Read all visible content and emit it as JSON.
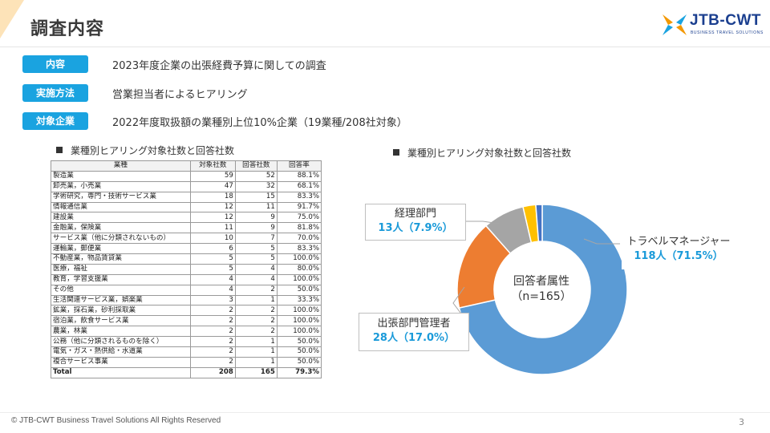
{
  "page": {
    "title": "調査内容",
    "footer": "© JTB-CWT Business Travel Solutions All Rights Reserved",
    "page_number": "3"
  },
  "logo": {
    "brand": "JTB-CWT",
    "tagline": "BUSINESS TRAVEL SOLUTIONS"
  },
  "info": [
    {
      "label": "内容",
      "text": "2023年度企業の出張経費予算に関しての調査"
    },
    {
      "label": "実施方法",
      "text": "営業担当者によるヒアリング"
    },
    {
      "label": "対象企業",
      "text": "2022年度取扱額の業種別上位10%企業（19業種/208社対象）"
    }
  ],
  "table_section": {
    "heading": "業種別ヒアリング対象社数と回答社数",
    "columns": [
      "業種",
      "対象社数",
      "回答社数",
      "回答率"
    ],
    "rows": [
      [
        "製造業",
        "59",
        "52",
        "88.1%"
      ],
      [
        "卸売業，小売業",
        "47",
        "32",
        "68.1%"
      ],
      [
        "学術研究，専門・技術サービス業",
        "18",
        "15",
        "83.3%"
      ],
      [
        "情報通信業",
        "12",
        "11",
        "91.7%"
      ],
      [
        "建設業",
        "12",
        "9",
        "75.0%"
      ],
      [
        "金融業，保険業",
        "11",
        "9",
        "81.8%"
      ],
      [
        "サービス業（他に分類されないもの）",
        "10",
        "7",
        "70.0%"
      ],
      [
        "運輸業，郵便業",
        "6",
        "5",
        "83.3%"
      ],
      [
        "不動産業，物品賃貸業",
        "5",
        "5",
        "100.0%"
      ],
      [
        "医療，福祉",
        "5",
        "4",
        "80.0%"
      ],
      [
        "教育，学習支援業",
        "4",
        "4",
        "100.0%"
      ],
      [
        "その他",
        "4",
        "2",
        "50.0%"
      ],
      [
        "生活関連サービス業，娯楽業",
        "3",
        "1",
        "33.3%"
      ],
      [
        "鉱業，採石業，砂利採取業",
        "2",
        "2",
        "100.0%"
      ],
      [
        "宿泊業，飲食サービス業",
        "2",
        "2",
        "100.0%"
      ],
      [
        "農業，林業",
        "2",
        "2",
        "100.0%"
      ],
      [
        "公務（他に分類されるものを除く）",
        "2",
        "1",
        "50.0%"
      ],
      [
        "電気・ガス・熱供給・水道業",
        "2",
        "1",
        "50.0%"
      ],
      [
        "複合サービス事業",
        "2",
        "1",
        "50.0%"
      ]
    ],
    "total": [
      "Total",
      "208",
      "165",
      "79.3%"
    ]
  },
  "chart_section": {
    "heading": "業種別ヒアリング対象社数と回答社数"
  },
  "chart_data": [
    {
      "type": "table",
      "columns": [
        "業種",
        "対象社数",
        "回答社数",
        "回答率"
      ],
      "rows": [
        [
          "製造業",
          59,
          52,
          "88.1%"
        ],
        [
          "卸売業，小売業",
          47,
          32,
          "68.1%"
        ],
        [
          "学術研究，専門・技術サービス業",
          18,
          15,
          "83.3%"
        ],
        [
          "情報通信業",
          12,
          11,
          "91.7%"
        ],
        [
          "建設業",
          12,
          9,
          "75.0%"
        ],
        [
          "金融業，保険業",
          11,
          9,
          "81.8%"
        ],
        [
          "サービス業（他に分類されないもの）",
          10,
          7,
          "70.0%"
        ],
        [
          "運輸業，郵便業",
          6,
          5,
          "83.3%"
        ],
        [
          "不動産業，物品賃貸業",
          5,
          5,
          "100.0%"
        ],
        [
          "医療，福祉",
          5,
          4,
          "80.0%"
        ],
        [
          "教育，学習支援業",
          4,
          4,
          "100.0%"
        ],
        [
          "その他",
          4,
          2,
          "50.0%"
        ],
        [
          "生活関連サービス業，娯楽業",
          3,
          1,
          "33.3%"
        ],
        [
          "鉱業，採石業，砂利採取業",
          2,
          2,
          "100.0%"
        ],
        [
          "宿泊業，飲食サービス業",
          2,
          2,
          "100.0%"
        ],
        [
          "農業，林業",
          2,
          2,
          "100.0%"
        ],
        [
          "公務（他に分類されるものを除く）",
          2,
          1,
          "50.0%"
        ],
        [
          "電気・ガス・熱供給・水道業",
          2,
          1,
          "50.0%"
        ],
        [
          "複合サービス事業",
          2,
          1,
          "50.0%"
        ]
      ],
      "total": [
        "Total",
        208,
        165,
        "79.3%"
      ]
    },
    {
      "type": "pie",
      "center_label": "回答者属性",
      "center_sub": "（n=165）",
      "slices": [
        {
          "name": "トラベルマネージャー",
          "value": 118,
          "display": "118人（71.5%）",
          "color": "#5b9bd5"
        },
        {
          "name": "出張部門管理者",
          "value": 28,
          "display": "28人（17.0%）",
          "color": "#ed7d31"
        },
        {
          "name": "経理部門",
          "value": 13,
          "display": "13人（7.9%）",
          "color": "#a5a5a5"
        },
        {
          "name": "",
          "value": 4,
          "display": "",
          "color": "#ffc000"
        },
        {
          "name": "",
          "value": 2,
          "display": "",
          "color": "#4472c4"
        }
      ]
    }
  ],
  "colors": {
    "accent": "#1aa3e0",
    "value_text": "#1a9ad9",
    "brand_blue": "#1b3f8f",
    "brand_orange": "#f39800"
  }
}
